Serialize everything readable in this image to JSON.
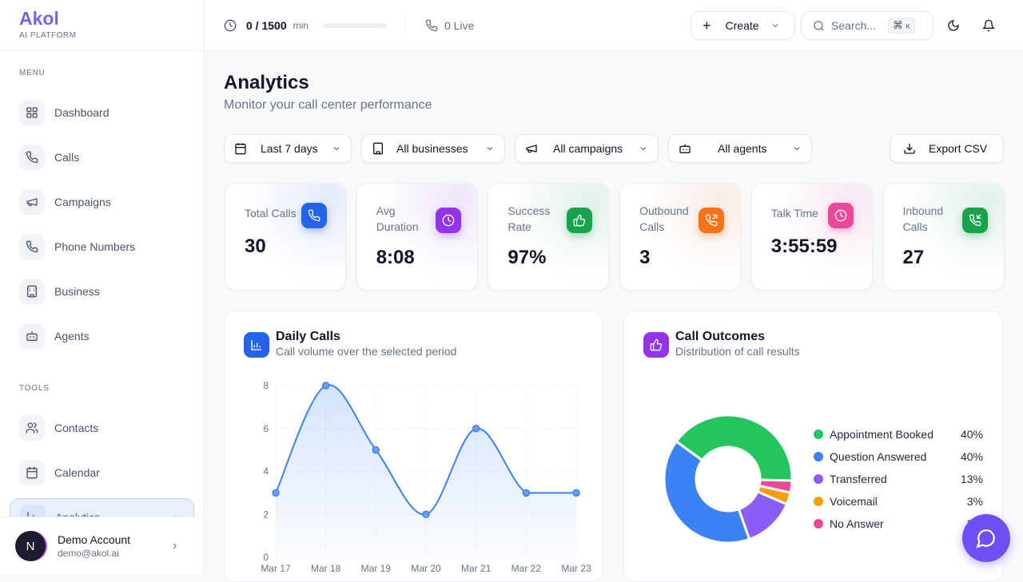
{
  "brand": {
    "name": "Akol",
    "tagline": "AI PLATFORM"
  },
  "sidebar": {
    "menu_label": "MENU",
    "tools_label": "TOOLS",
    "menu": [
      {
        "label": "Dashboard",
        "icon": "grid-icon"
      },
      {
        "label": "Calls",
        "icon": "phone-icon"
      },
      {
        "label": "Campaigns",
        "icon": "megaphone-icon"
      },
      {
        "label": "Phone Numbers",
        "icon": "phone-icon"
      },
      {
        "label": "Business",
        "icon": "building-icon"
      },
      {
        "label": "Agents",
        "icon": "bot-icon"
      }
    ],
    "tools": [
      {
        "label": "Contacts",
        "icon": "users-icon"
      },
      {
        "label": "Calendar",
        "icon": "calendar-icon"
      },
      {
        "label": "Analytics",
        "icon": "chart-icon",
        "active": true
      }
    ]
  },
  "account": {
    "initial": "N",
    "name": "Demo Account",
    "email": "demo@akol.ai"
  },
  "header": {
    "usage": "0 / 1500",
    "usage_unit": "min",
    "usage_progress": 0,
    "live": "0 Live",
    "create": "Create",
    "search_placeholder": "Search...",
    "shortcut_symbol": "⌘",
    "shortcut_key": "K"
  },
  "page": {
    "title": "Analytics",
    "subtitle": "Monitor your call center performance"
  },
  "filters": {
    "date": "Last 7 days",
    "business": "All businesses",
    "campaign": "All campaigns",
    "agent": "All agents",
    "export": "Export CSV"
  },
  "stats": [
    {
      "label": "Total Calls",
      "value": "30",
      "color": "#2563eb"
    },
    {
      "label": "Avg Duration",
      "value": "8:08",
      "color": "#9333ea"
    },
    {
      "label": "Success Rate",
      "value": "97%",
      "color": "#16a34a"
    },
    {
      "label": "Outbound Calls",
      "value": "3",
      "color": "#f97316"
    },
    {
      "label": "Talk Time",
      "value": "3:55:59",
      "color": "#ec4899"
    },
    {
      "label": "Inbound Calls",
      "value": "27",
      "color": "#16a34a"
    }
  ],
  "daily": {
    "title": "Daily Calls",
    "subtitle": "Call volume over the selected period"
  },
  "outcomes": {
    "title": "Call Outcomes",
    "subtitle": "Distribution of call results"
  },
  "chart_data": [
    {
      "type": "area",
      "categories": [
        "Mar 17",
        "Mar 18",
        "Mar 19",
        "Mar 20",
        "Mar 21",
        "Mar 22",
        "Mar 23"
      ],
      "values": [
        3,
        8,
        5,
        2,
        6,
        3,
        3
      ],
      "ylim": [
        0,
        8
      ],
      "yticks": [
        "0",
        "2",
        "4",
        "6",
        "8"
      ],
      "grid": true,
      "color": "#3b82f6"
    },
    {
      "type": "pie",
      "donut": true,
      "legend": "right",
      "slices": [
        {
          "name": "Appointment Booked",
          "value": 40,
          "label": "40%",
          "color": "#22c55e"
        },
        {
          "name": "No Answer",
          "value": 3,
          "label": "3%",
          "color": "#ec4899"
        },
        {
          "name": "Voicemail",
          "value": 3,
          "label": "3%",
          "color": "#f59e0b"
        },
        {
          "name": "Transferred",
          "value": 13,
          "label": "13%",
          "color": "#8b5cf6"
        },
        {
          "name": "Question Answered",
          "value": 40,
          "label": "40%",
          "color": "#3b82f6"
        }
      ],
      "legend_order": [
        "Appointment Booked",
        "Question Answered",
        "Transferred",
        "Voicemail",
        "No Answer"
      ]
    }
  ]
}
